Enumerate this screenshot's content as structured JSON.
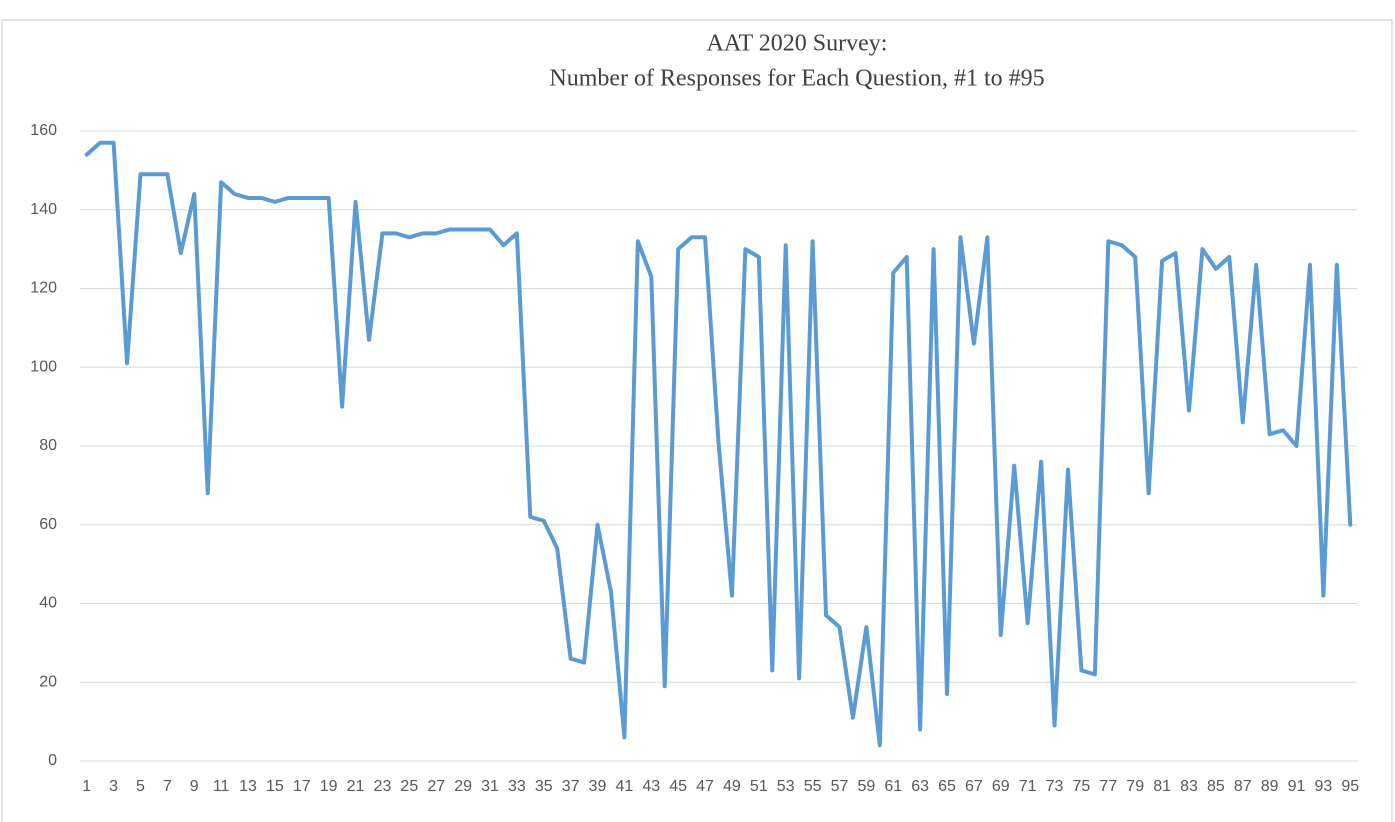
{
  "chart_data": {
    "type": "line",
    "title": [
      "AAT 2020 Survey:",
      "Number of Responses for Each Question, #1 to #95"
    ],
    "categories": [
      1,
      null,
      3,
      null,
      5,
      null,
      7,
      null,
      9,
      null,
      11,
      null,
      13,
      null,
      15,
      null,
      17,
      null,
      19,
      null,
      21,
      null,
      23,
      null,
      25,
      null,
      27,
      null,
      29,
      null,
      31,
      null,
      33,
      null,
      35,
      null,
      37,
      null,
      39,
      null,
      41,
      null,
      43,
      null,
      45,
      null,
      47,
      null,
      49,
      null,
      51,
      null,
      53,
      null,
      55,
      null,
      57,
      null,
      59,
      null,
      61,
      null,
      63,
      null,
      65,
      null,
      67,
      null,
      69,
      null,
      71,
      null,
      73,
      null,
      75,
      null,
      77,
      null,
      79,
      null,
      81,
      null,
      83,
      null,
      85,
      null,
      87,
      null,
      89,
      null,
      91,
      null,
      93,
      null,
      95
    ],
    "values": [
      154,
      157,
      157,
      101,
      149,
      149,
      149,
      129,
      144,
      68,
      147,
      144,
      143,
      143,
      142,
      143,
      143,
      143,
      143,
      90,
      142,
      107,
      134,
      134,
      133,
      134,
      134,
      135,
      135,
      135,
      135,
      131,
      134,
      62,
      61,
      54,
      26,
      25,
      60,
      43,
      6,
      132,
      123,
      19,
      130,
      133,
      133,
      81,
      42,
      130,
      128,
      23,
      131,
      21,
      132,
      37,
      34,
      11,
      34,
      4,
      124,
      128,
      8,
      130,
      17,
      133,
      106,
      133,
      32,
      75,
      35,
      76,
      9,
      74,
      23,
      22,
      132,
      131,
      128,
      68,
      127,
      129,
      89,
      130,
      125,
      128,
      86,
      126,
      83,
      84,
      80,
      126,
      42,
      126,
      60
    ],
    "color": "#5b9bd5",
    "ylim": [
      0,
      160
    ],
    "yticks": [
      0,
      20,
      40,
      60,
      80,
      100,
      120,
      140,
      160
    ],
    "grid": true
  }
}
